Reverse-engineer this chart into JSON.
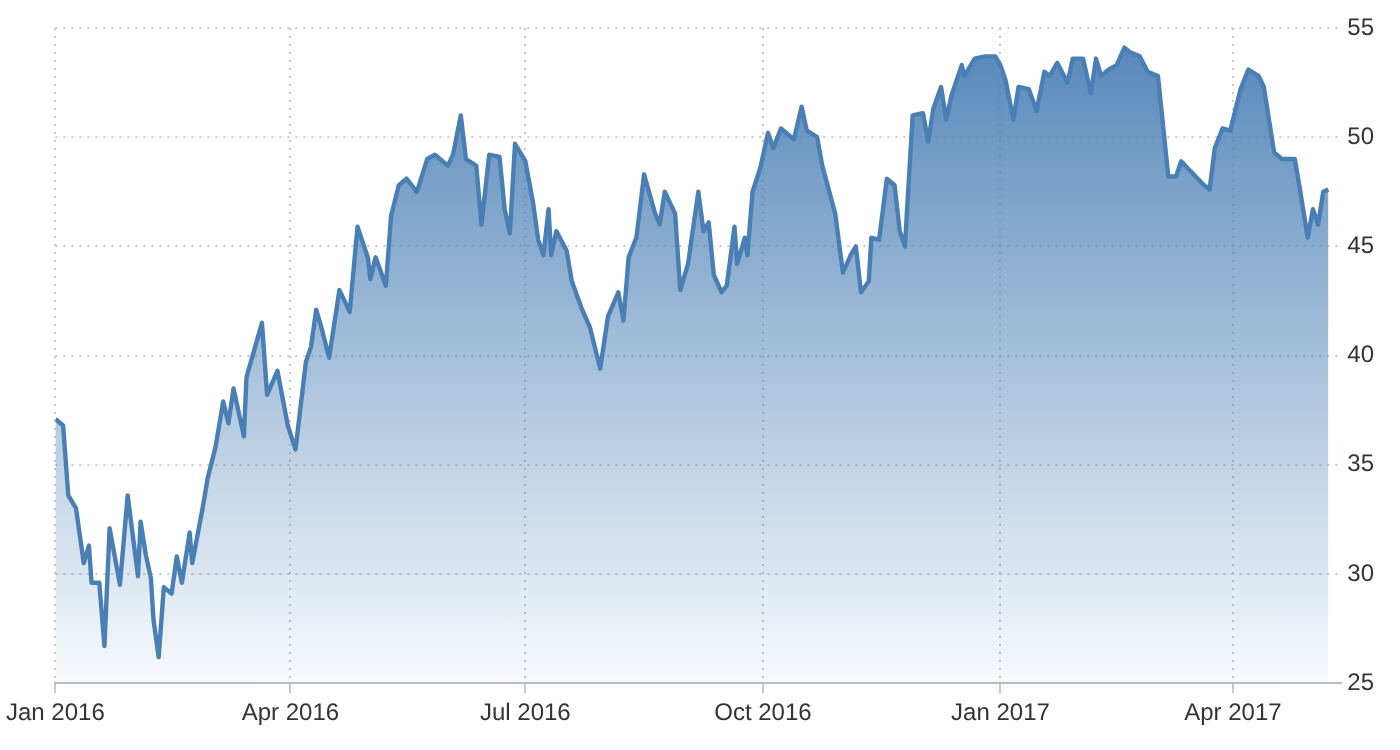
{
  "chart_data": {
    "type": "area",
    "color": "#4a7fb5",
    "grid": true,
    "legend": false,
    "marker": "none",
    "line_style": "solid",
    "xlim": [
      "2016-01-01",
      "2017-05-13"
    ],
    "xticks": [
      {
        "value": "2016-01-01",
        "label": "Jan 2016"
      },
      {
        "value": "2016-04-01",
        "label": "Apr 2016"
      },
      {
        "value": "2016-07-01",
        "label": "Jul 2016"
      },
      {
        "value": "2016-10-01",
        "label": "Oct 2016"
      },
      {
        "value": "2017-01-01",
        "label": "Jan 2017"
      },
      {
        "value": "2017-04-01",
        "label": "Apr 2017"
      }
    ],
    "ylim": [
      25,
      55
    ],
    "yticks": [
      25,
      30,
      35,
      40,
      45,
      50,
      55
    ],
    "x": [
      "2016-01-01",
      "2016-01-04",
      "2016-01-06",
      "2016-01-09",
      "2016-01-12",
      "2016-01-14",
      "2016-01-15",
      "2016-01-18",
      "2016-01-20",
      "2016-01-22",
      "2016-01-26",
      "2016-01-29",
      "2016-02-02",
      "2016-02-03",
      "2016-02-05",
      "2016-02-07",
      "2016-02-08",
      "2016-02-10",
      "2016-02-12",
      "2016-02-15",
      "2016-02-17",
      "2016-02-19",
      "2016-02-22",
      "2016-02-23",
      "2016-02-27",
      "2016-02-29",
      "2016-03-03",
      "2016-03-06",
      "2016-03-08",
      "2016-03-10",
      "2016-03-14",
      "2016-03-15",
      "2016-03-21",
      "2016-03-23",
      "2016-03-27",
      "2016-03-31",
      "2016-04-03",
      "2016-04-05",
      "2016-04-07",
      "2016-04-09",
      "2016-04-11",
      "2016-04-13",
      "2016-04-16",
      "2016-04-20",
      "2016-04-24",
      "2016-04-27",
      "2016-05-01",
      "2016-05-02",
      "2016-05-04",
      "2016-05-08",
      "2016-05-10",
      "2016-05-13",
      "2016-05-16",
      "2016-05-20",
      "2016-05-24",
      "2016-05-27",
      "2016-06-01",
      "2016-06-03",
      "2016-06-06",
      "2016-06-08",
      "2016-06-12",
      "2016-06-14",
      "2016-06-17",
      "2016-06-21",
      "2016-06-23",
      "2016-06-25",
      "2016-06-27",
      "2016-07-01",
      "2016-07-04",
      "2016-07-06",
      "2016-07-08",
      "2016-07-10",
      "2016-07-11",
      "2016-07-13",
      "2016-07-17",
      "2016-07-19",
      "2016-07-23",
      "2016-07-26",
      "2016-07-30",
      "2016-08-02",
      "2016-08-06",
      "2016-08-08",
      "2016-08-10",
      "2016-08-13",
      "2016-08-16",
      "2016-08-20",
      "2016-08-22",
      "2016-08-24",
      "2016-08-28",
      "2016-08-30",
      "2016-09-02",
      "2016-09-06",
      "2016-09-08",
      "2016-09-10",
      "2016-09-12",
      "2016-09-15",
      "2016-09-17",
      "2016-09-20",
      "2016-09-21",
      "2016-09-24",
      "2016-09-25",
      "2016-09-27",
      "2016-09-30",
      "2016-10-03",
      "2016-10-05",
      "2016-10-08",
      "2016-10-13",
      "2016-10-16",
      "2016-10-18",
      "2016-10-22",
      "2016-10-24",
      "2016-10-29",
      "2016-11-01",
      "2016-11-04",
      "2016-11-06",
      "2016-11-08",
      "2016-11-11",
      "2016-11-12",
      "2016-11-15",
      "2016-11-18",
      "2016-11-21",
      "2016-11-23",
      "2016-11-25",
      "2016-11-28",
      "2016-12-02",
      "2016-12-04",
      "2016-12-06",
      "2016-12-09",
      "2016-12-11",
      "2016-12-13",
      "2016-12-17",
      "2016-12-18",
      "2016-12-22",
      "2016-12-26",
      "2016-12-30",
      "2017-01-01",
      "2017-01-03",
      "2017-01-06",
      "2017-01-08",
      "2017-01-12",
      "2017-01-15",
      "2017-01-18",
      "2017-01-20",
      "2017-01-23",
      "2017-01-27",
      "2017-01-29",
      "2017-02-02",
      "2017-02-05",
      "2017-02-07",
      "2017-02-09",
      "2017-02-12",
      "2017-02-15",
      "2017-02-18",
      "2017-02-20",
      "2017-02-24",
      "2017-02-27",
      "2017-03-03",
      "2017-03-07",
      "2017-03-10",
      "2017-03-12",
      "2017-03-16",
      "2017-03-20",
      "2017-03-23",
      "2017-03-25",
      "2017-03-28",
      "2017-03-31",
      "2017-04-04",
      "2017-04-07",
      "2017-04-11",
      "2017-04-13",
      "2017-04-17",
      "2017-04-20",
      "2017-04-25",
      "2017-04-27",
      "2017-04-30",
      "2017-05-02",
      "2017-05-04",
      "2017-05-06",
      "2017-05-08"
    ],
    "values": [
      37.1,
      36.8,
      33.6,
      33.0,
      30.5,
      31.3,
      29.6,
      29.6,
      26.7,
      32.1,
      29.5,
      33.6,
      29.9,
      32.4,
      30.9,
      29.8,
      27.9,
      26.2,
      29.4,
      29.1,
      30.8,
      29.6,
      31.9,
      30.5,
      33.0,
      34.4,
      35.8,
      37.9,
      36.9,
      38.5,
      36.3,
      39.0,
      41.5,
      38.2,
      39.3,
      36.8,
      35.7,
      37.7,
      39.7,
      40.4,
      42.1,
      41.3,
      39.9,
      43.0,
      42.0,
      45.9,
      44.5,
      43.5,
      44.5,
      43.2,
      46.4,
      47.8,
      48.1,
      47.5,
      49.0,
      49.2,
      48.7,
      49.2,
      51.0,
      49.0,
      48.7,
      46.0,
      49.2,
      49.1,
      46.7,
      45.6,
      49.7,
      48.9,
      47.0,
      45.3,
      44.6,
      46.7,
      44.6,
      45.7,
      44.8,
      43.4,
      42.1,
      41.3,
      39.4,
      41.8,
      42.9,
      41.6,
      44.5,
      45.4,
      48.3,
      46.6,
      46.0,
      47.5,
      46.5,
      43.0,
      44.2,
      47.5,
      45.7,
      46.1,
      43.7,
      42.9,
      43.2,
      45.9,
      44.2,
      45.4,
      44.6,
      47.5,
      48.6,
      50.2,
      49.5,
      50.4,
      49.9,
      51.4,
      50.3,
      50.0,
      48.7,
      46.5,
      43.8,
      44.6,
      45.0,
      42.9,
      43.4,
      45.4,
      45.3,
      48.1,
      47.8,
      45.7,
      45.0,
      51.0,
      51.1,
      49.8,
      51.3,
      52.3,
      50.8,
      51.9,
      53.3,
      52.8,
      53.6,
      53.7,
      53.7,
      53.3,
      52.6,
      50.8,
      52.3,
      52.2,
      51.2,
      53.0,
      52.8,
      53.4,
      52.5,
      53.6,
      53.6,
      52.0,
      53.6,
      52.8,
      53.1,
      53.3,
      54.1,
      53.9,
      53.7,
      53.0,
      52.8,
      48.2,
      48.2,
      48.9,
      48.4,
      47.9,
      47.6,
      49.5,
      50.4,
      50.3,
      52.2,
      53.1,
      52.8,
      52.3,
      49.3,
      49.0,
      49.0,
      47.6,
      45.4,
      46.7,
      46.0,
      47.5,
      47.6
    ]
  }
}
